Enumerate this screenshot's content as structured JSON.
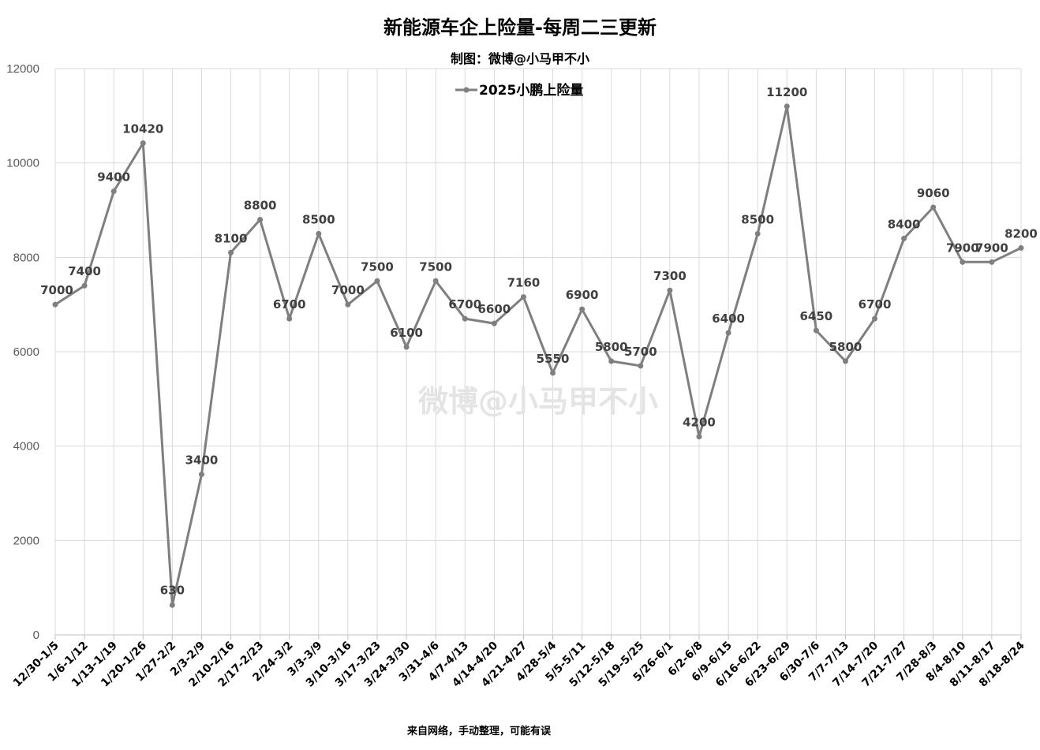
{
  "watermark": "微博@小马甲不小",
  "footer": "来自网络，手动整理，可能有误",
  "colors": {
    "series": "#7f7f7f",
    "grid": "#d9d9d9",
    "label": "#3f3f3f"
  },
  "chart_data": {
    "type": "line",
    "title": "新能源车企上险量-每周二三更新",
    "subtitle": "制图：微博@小马甲不小",
    "xlabel": "",
    "ylabel": "",
    "ylim": [
      0,
      12000
    ],
    "yticks": [
      0,
      2000,
      4000,
      6000,
      8000,
      10000,
      12000
    ],
    "grid": true,
    "legend_position": "top-center",
    "categories": [
      "12/30-1/5",
      "1/6-1/12",
      "1/13-1/19",
      "1/20-1/26",
      "1/27-2/2",
      "2/3-2/9",
      "2/10-2/16",
      "2/17-2/23",
      "2/24-3/2",
      "3/3-3/9",
      "3/10-3/16",
      "3/17-3/23",
      "3/24-3/30",
      "3/31-4/6",
      "4/7-4/13",
      "4/14-4/20",
      "4/21-4/27",
      "4/28-5/4",
      "5/5-5/11",
      "5/12-5/18",
      "5/19-5/25",
      "5/26-6/1",
      "6/2-6/8",
      "6/9-6/15",
      "6/16-6/22",
      "6/23-6/29",
      "6/30-7/6",
      "7/7-7/13",
      "7/14-7/20",
      "7/21-7/27",
      "7/28-8/3",
      "8/4-8/10",
      "8/11-8/17",
      "8/18-8/24"
    ],
    "series": [
      {
        "name": "2025小鹏上险量",
        "values": [
          7000,
          7400,
          9400,
          10420,
          630,
          3400,
          8100,
          8800,
          6700,
          8500,
          7000,
          7500,
          6100,
          7500,
          6700,
          6600,
          7160,
          5550,
          6900,
          5800,
          5700,
          7300,
          4200,
          6400,
          8500,
          11200,
          6450,
          5800,
          6700,
          8400,
          9060,
          7900,
          7900,
          8200
        ]
      }
    ]
  }
}
